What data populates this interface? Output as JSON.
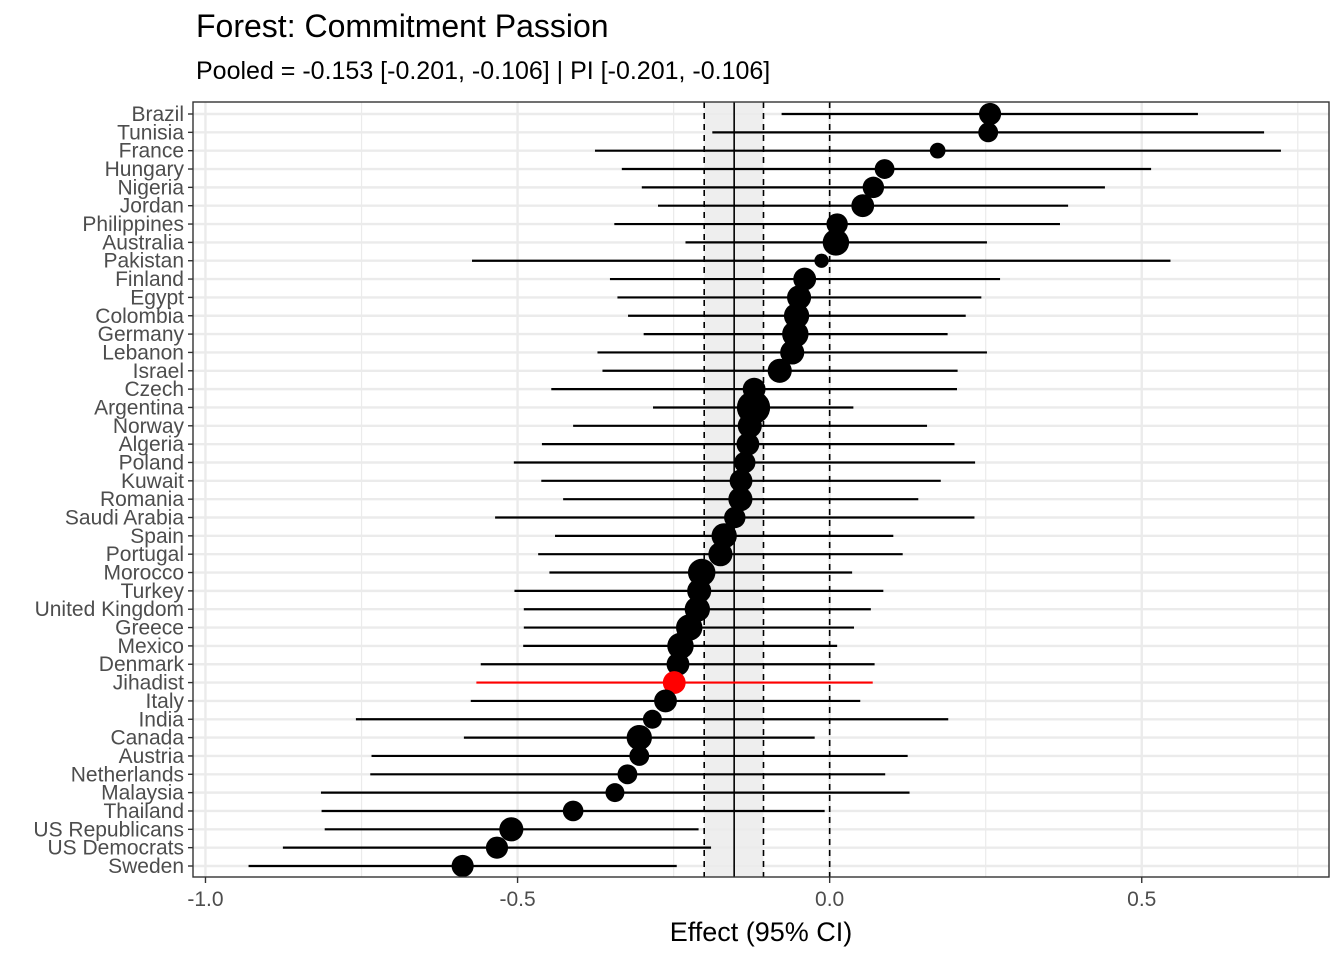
{
  "title": "Forest: Commitment Passion",
  "subtitle": "Pooled = -0.153 [-0.201, -0.106] | PI [-0.201, -0.106]",
  "chart_data": {
    "type": "forest",
    "title": "Forest: Commitment Passion",
    "subtitle": "Pooled = -0.153 [-0.201, -0.106] | PI [-0.201, -0.106]",
    "xlabel": "Effect (95% CI)",
    "ylabel": "",
    "xlim": [
      -1.02,
      0.8
    ],
    "xticks": [
      -1.0,
      -0.5,
      0.0,
      0.5
    ],
    "xtick_labels": [
      "-1.0",
      "-0.5",
      "0.0",
      "0.5"
    ],
    "grid": true,
    "pooled": {
      "estimate": -0.153,
      "ci_low": -0.201,
      "ci_high": -0.106,
      "pi_low": -0.201,
      "pi_high": -0.106
    },
    "reference_line": 0.0,
    "colors": {
      "default": "#000000",
      "highlight": "#ff0000",
      "band": "#ebebeb",
      "grid": "#ebebeb"
    },
    "studies": [
      {
        "label": "Brazil",
        "estimate": 0.257,
        "ci_low": -0.077,
        "ci_high": 0.59,
        "weight": 0.5
      },
      {
        "label": "Tunisia",
        "estimate": 0.254,
        "ci_low": -0.188,
        "ci_high": 0.696,
        "weight": 0.35
      },
      {
        "label": "France",
        "estimate": 0.173,
        "ci_low": -0.376,
        "ci_high": 0.723,
        "weight": 0.15
      },
      {
        "label": "Hungary",
        "estimate": 0.088,
        "ci_low": -0.333,
        "ci_high": 0.515,
        "weight": 0.35
      },
      {
        "label": "Nigeria",
        "estimate": 0.07,
        "ci_low": -0.301,
        "ci_high": 0.441,
        "weight": 0.45
      },
      {
        "label": "Jordan",
        "estimate": 0.053,
        "ci_low": -0.275,
        "ci_high": 0.382,
        "weight": 0.55
      },
      {
        "label": "Philippines",
        "estimate": 0.012,
        "ci_low": -0.345,
        "ci_high": 0.369,
        "weight": 0.45
      },
      {
        "label": "Australia",
        "estimate": 0.01,
        "ci_low": -0.231,
        "ci_high": 0.252,
        "weight": 0.85
      },
      {
        "label": "Pakistan",
        "estimate": -0.013,
        "ci_low": -0.573,
        "ci_high": 0.546,
        "weight": 0.1
      },
      {
        "label": "Finland",
        "estimate": -0.04,
        "ci_low": -0.352,
        "ci_high": 0.273,
        "weight": 0.55
      },
      {
        "label": "Egypt",
        "estimate": -0.049,
        "ci_low": -0.34,
        "ci_high": 0.243,
        "weight": 0.65
      },
      {
        "label": "Colombia",
        "estimate": -0.053,
        "ci_low": -0.323,
        "ci_high": 0.218,
        "weight": 0.75
      },
      {
        "label": "Germany",
        "estimate": -0.055,
        "ci_low": -0.298,
        "ci_high": 0.189,
        "weight": 0.85
      },
      {
        "label": "Lebanon",
        "estimate": -0.06,
        "ci_low": -0.372,
        "ci_high": 0.252,
        "weight": 0.65
      },
      {
        "label": "Israel",
        "estimate": -0.08,
        "ci_low": -0.364,
        "ci_high": 0.205,
        "weight": 0.65
      },
      {
        "label": "Czech",
        "estimate": -0.121,
        "ci_low": -0.446,
        "ci_high": 0.204,
        "weight": 0.55
      },
      {
        "label": "Argentina",
        "estimate": -0.122,
        "ci_low": -0.283,
        "ci_high": 0.038,
        "weight": 1.6
      },
      {
        "label": "Norway",
        "estimate": -0.128,
        "ci_low": -0.411,
        "ci_high": 0.156,
        "weight": 0.65
      },
      {
        "label": "Algeria",
        "estimate": -0.131,
        "ci_low": -0.461,
        "ci_high": 0.2,
        "weight": 0.55
      },
      {
        "label": "Poland",
        "estimate": -0.136,
        "ci_low": -0.506,
        "ci_high": 0.233,
        "weight": 0.45
      },
      {
        "label": "Kuwait",
        "estimate": -0.142,
        "ci_low": -0.462,
        "ci_high": 0.178,
        "weight": 0.55
      },
      {
        "label": "Romania",
        "estimate": -0.143,
        "ci_low": -0.427,
        "ci_high": 0.142,
        "weight": 0.65
      },
      {
        "label": "Saudi Arabia",
        "estimate": -0.152,
        "ci_low": -0.536,
        "ci_high": 0.232,
        "weight": 0.45
      },
      {
        "label": "Spain",
        "estimate": -0.169,
        "ci_low": -0.44,
        "ci_high": 0.102,
        "weight": 0.75
      },
      {
        "label": "Portugal",
        "estimate": -0.175,
        "ci_low": -0.467,
        "ci_high": 0.117,
        "weight": 0.65
      },
      {
        "label": "Morocco",
        "estimate": -0.205,
        "ci_low": -0.449,
        "ci_high": 0.036,
        "weight": 0.95
      },
      {
        "label": "Turkey",
        "estimate": -0.209,
        "ci_low": -0.505,
        "ci_high": 0.086,
        "weight": 0.65
      },
      {
        "label": "United Kingdom",
        "estimate": -0.212,
        "ci_low": -0.49,
        "ci_high": 0.066,
        "weight": 0.75
      },
      {
        "label": "Greece",
        "estimate": -0.225,
        "ci_low": -0.49,
        "ci_high": 0.039,
        "weight": 0.85
      },
      {
        "label": "Mexico",
        "estimate": -0.239,
        "ci_low": -0.491,
        "ci_high": 0.012,
        "weight": 0.85
      },
      {
        "label": "Denmark",
        "estimate": -0.243,
        "ci_low": -0.559,
        "ci_high": 0.072,
        "weight": 0.55
      },
      {
        "label": "Jihadist",
        "estimate": -0.249,
        "ci_low": -0.566,
        "ci_high": 0.069,
        "weight": 0.55,
        "highlight": true
      },
      {
        "label": "Italy",
        "estimate": -0.263,
        "ci_low": -0.575,
        "ci_high": 0.049,
        "weight": 0.55
      },
      {
        "label": "India",
        "estimate": -0.284,
        "ci_low": -0.759,
        "ci_high": 0.19,
        "weight": 0.3
      },
      {
        "label": "Canada",
        "estimate": -0.305,
        "ci_low": -0.586,
        "ci_high": -0.024,
        "weight": 0.75
      },
      {
        "label": "Austria",
        "estimate": -0.305,
        "ci_low": -0.734,
        "ci_high": 0.125,
        "weight": 0.35
      },
      {
        "label": "Netherlands",
        "estimate": -0.324,
        "ci_low": -0.736,
        "ci_high": 0.089,
        "weight": 0.35
      },
      {
        "label": "Malaysia",
        "estimate": -0.344,
        "ci_low": -0.815,
        "ci_high": 0.128,
        "weight": 0.3
      },
      {
        "label": "Thailand",
        "estimate": -0.411,
        "ci_low": -0.814,
        "ci_high": -0.008,
        "weight": 0.4
      },
      {
        "label": "US Republicans",
        "estimate": -0.51,
        "ci_low": -0.809,
        "ci_high": -0.21,
        "weight": 0.65
      },
      {
        "label": "US Democrats",
        "estimate": -0.533,
        "ci_low": -0.876,
        "ci_high": -0.19,
        "weight": 0.5
      },
      {
        "label": "Sweden",
        "estimate": -0.588,
        "ci_low": -0.931,
        "ci_high": -0.245,
        "weight": 0.5
      }
    ]
  }
}
